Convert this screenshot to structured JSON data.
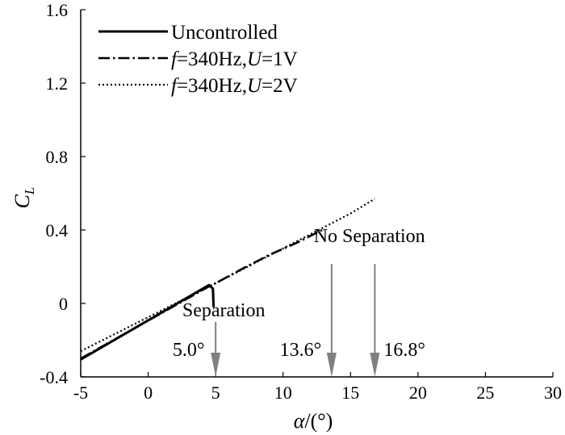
{
  "chart_data": {
    "type": "line",
    "title": "",
    "xlabel": {
      "symbol": "α",
      "rest": "/(°)"
    },
    "ylabel": {
      "main": "C",
      "sub": "L"
    },
    "xlim": [
      -5,
      30
    ],
    "ylim": [
      -0.4,
      1.6
    ],
    "xticks": [
      -5,
      0,
      5,
      10,
      15,
      20,
      25,
      30
    ],
    "yticks": [
      -0.4,
      0,
      0.4,
      0.8,
      1.2,
      1.6
    ],
    "xtick_labels": [
      "-5",
      "0",
      "5",
      "10",
      "15",
      "20",
      "25",
      "30"
    ],
    "ytick_labels": [
      "-0.4",
      "0",
      "0.4",
      "0.8",
      "1.2",
      "1.6"
    ],
    "grid": false,
    "legend_position": "top-left",
    "series": [
      {
        "name": "Uncontrolled",
        "style": "solid",
        "legend_parts": [
          {
            "text": "Uncontrolled",
            "italic": false
          }
        ],
        "x": [
          -5,
          4.5,
          4.8,
          4.85
        ],
        "y": [
          -0.305,
          0.1,
          0.08,
          -0.02
        ]
      },
      {
        "name": "f=340Hz,U=1V",
        "style": "dashdot",
        "legend_parts": [
          {
            "text": "f",
            "italic": true
          },
          {
            "text": "=340Hz,",
            "italic": false
          },
          {
            "text": "U",
            "italic": true
          },
          {
            "text": "=1V",
            "italic": false
          }
        ],
        "x": [
          -5,
          4.8,
          5.0,
          7,
          9,
          11,
          12.9
        ],
        "y": [
          -0.3,
          0.105,
          0.11,
          0.19,
          0.265,
          0.33,
          0.4
        ]
      },
      {
        "name": "f=340Hz,U=2V",
        "style": "dotted",
        "legend_parts": [
          {
            "text": "f",
            "italic": true
          },
          {
            "text": "=340Hz,",
            "italic": false
          },
          {
            "text": "U",
            "italic": true
          },
          {
            "text": "=2V",
            "italic": false
          }
        ],
        "x": [
          -5,
          5,
          10,
          15,
          16.8
        ],
        "y": [
          -0.26,
          0.11,
          0.3,
          0.49,
          0.57
        ]
      }
    ],
    "annotations": [
      {
        "text": "No Separation",
        "x": 16.4,
        "y": 0.335
      },
      {
        "text": "Separation",
        "x": 5.6,
        "y": -0.07
      },
      {
        "text": "5.0°",
        "x": 3.0,
        "y": -0.285
      },
      {
        "text": "13.6°",
        "x": 11.3,
        "y": -0.285
      },
      {
        "text": "16.8°",
        "x": 19.0,
        "y": -0.285
      }
    ],
    "arrows": [
      {
        "name": "arrow-5",
        "x": 5.0,
        "y_from": -0.1,
        "y_to": -0.4
      },
      {
        "name": "arrow-13-6",
        "x": 13.6,
        "y_from": 0.215,
        "y_to": -0.4
      },
      {
        "name": "arrow-16-8",
        "x": 16.8,
        "y_from": 0.215,
        "y_to": -0.4
      }
    ]
  }
}
